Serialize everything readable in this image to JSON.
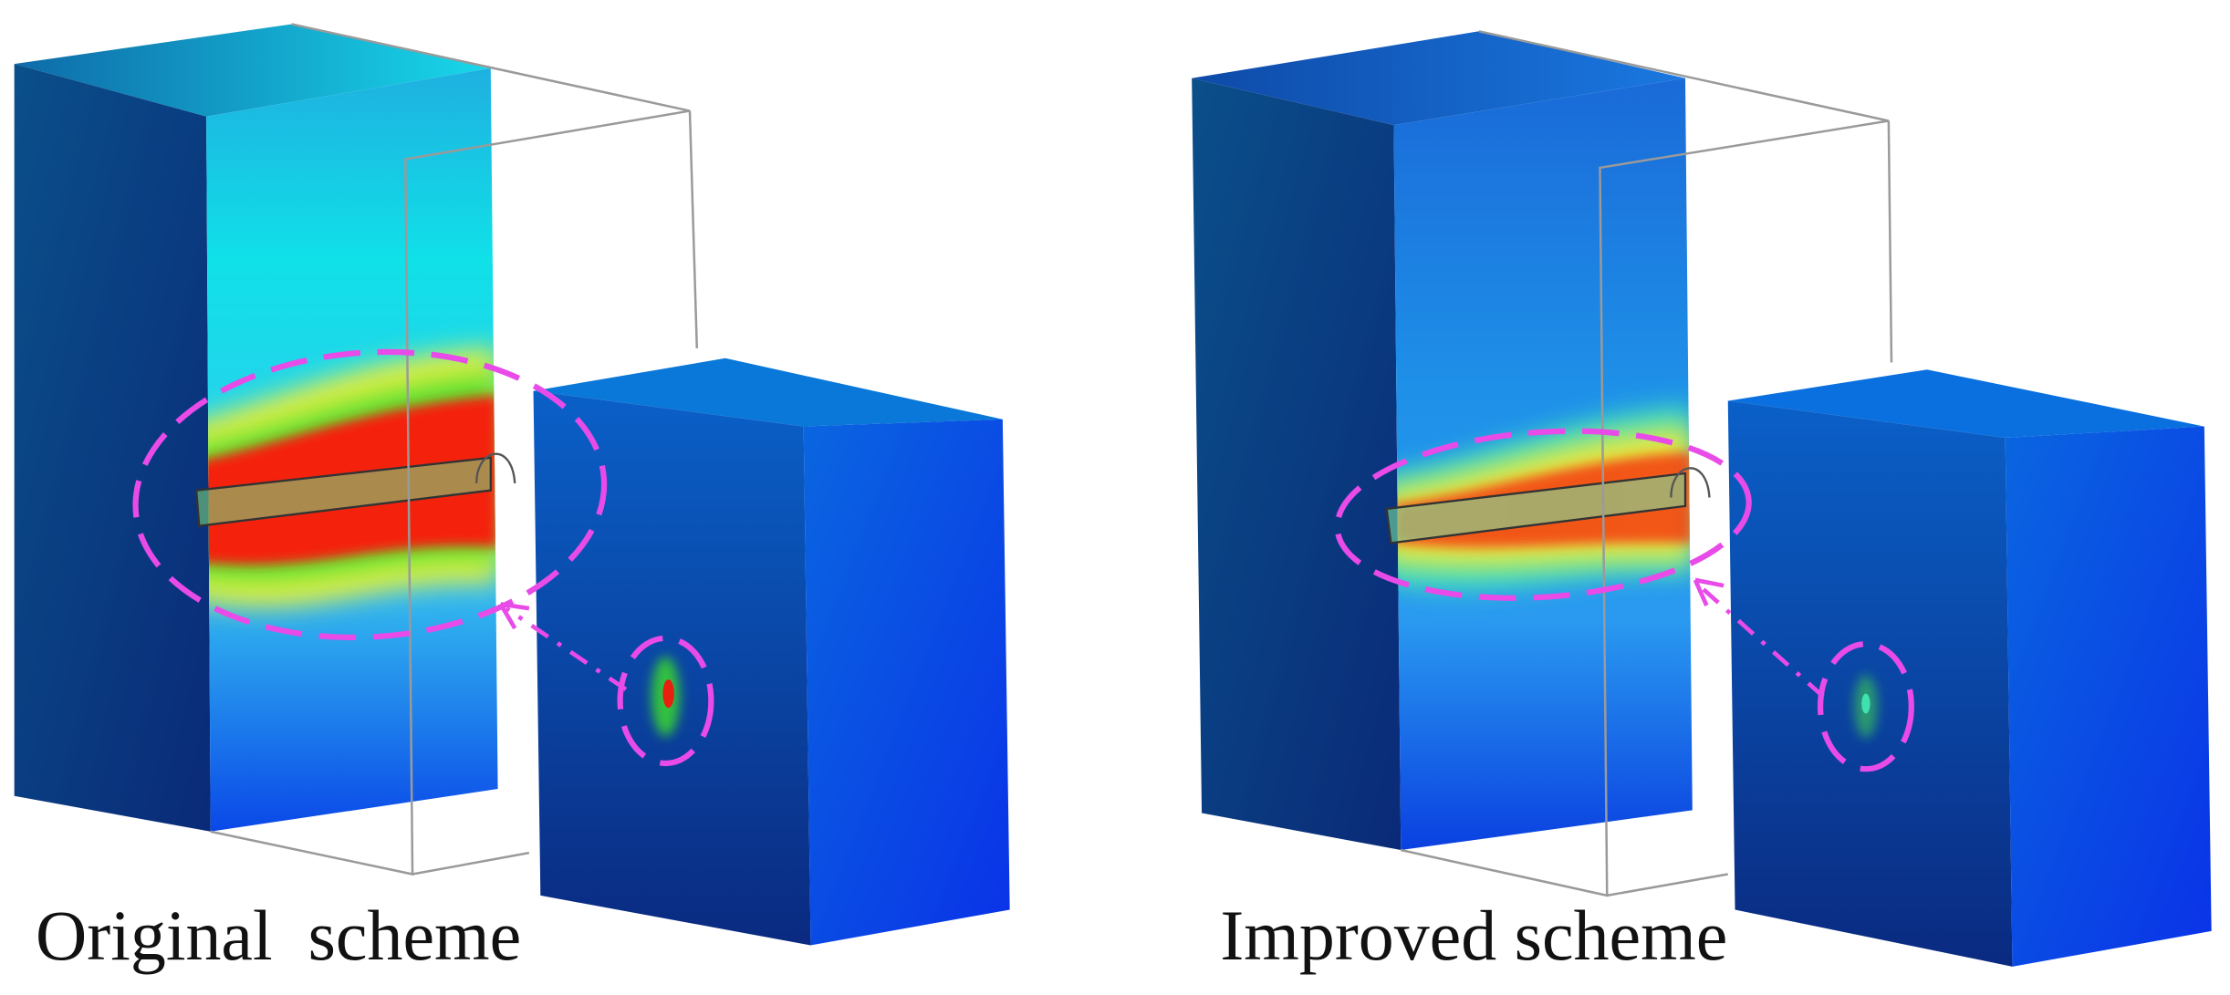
{
  "panels": [
    {
      "label": "Original  scheme"
    },
    {
      "label": "Improved scheme"
    }
  ]
}
